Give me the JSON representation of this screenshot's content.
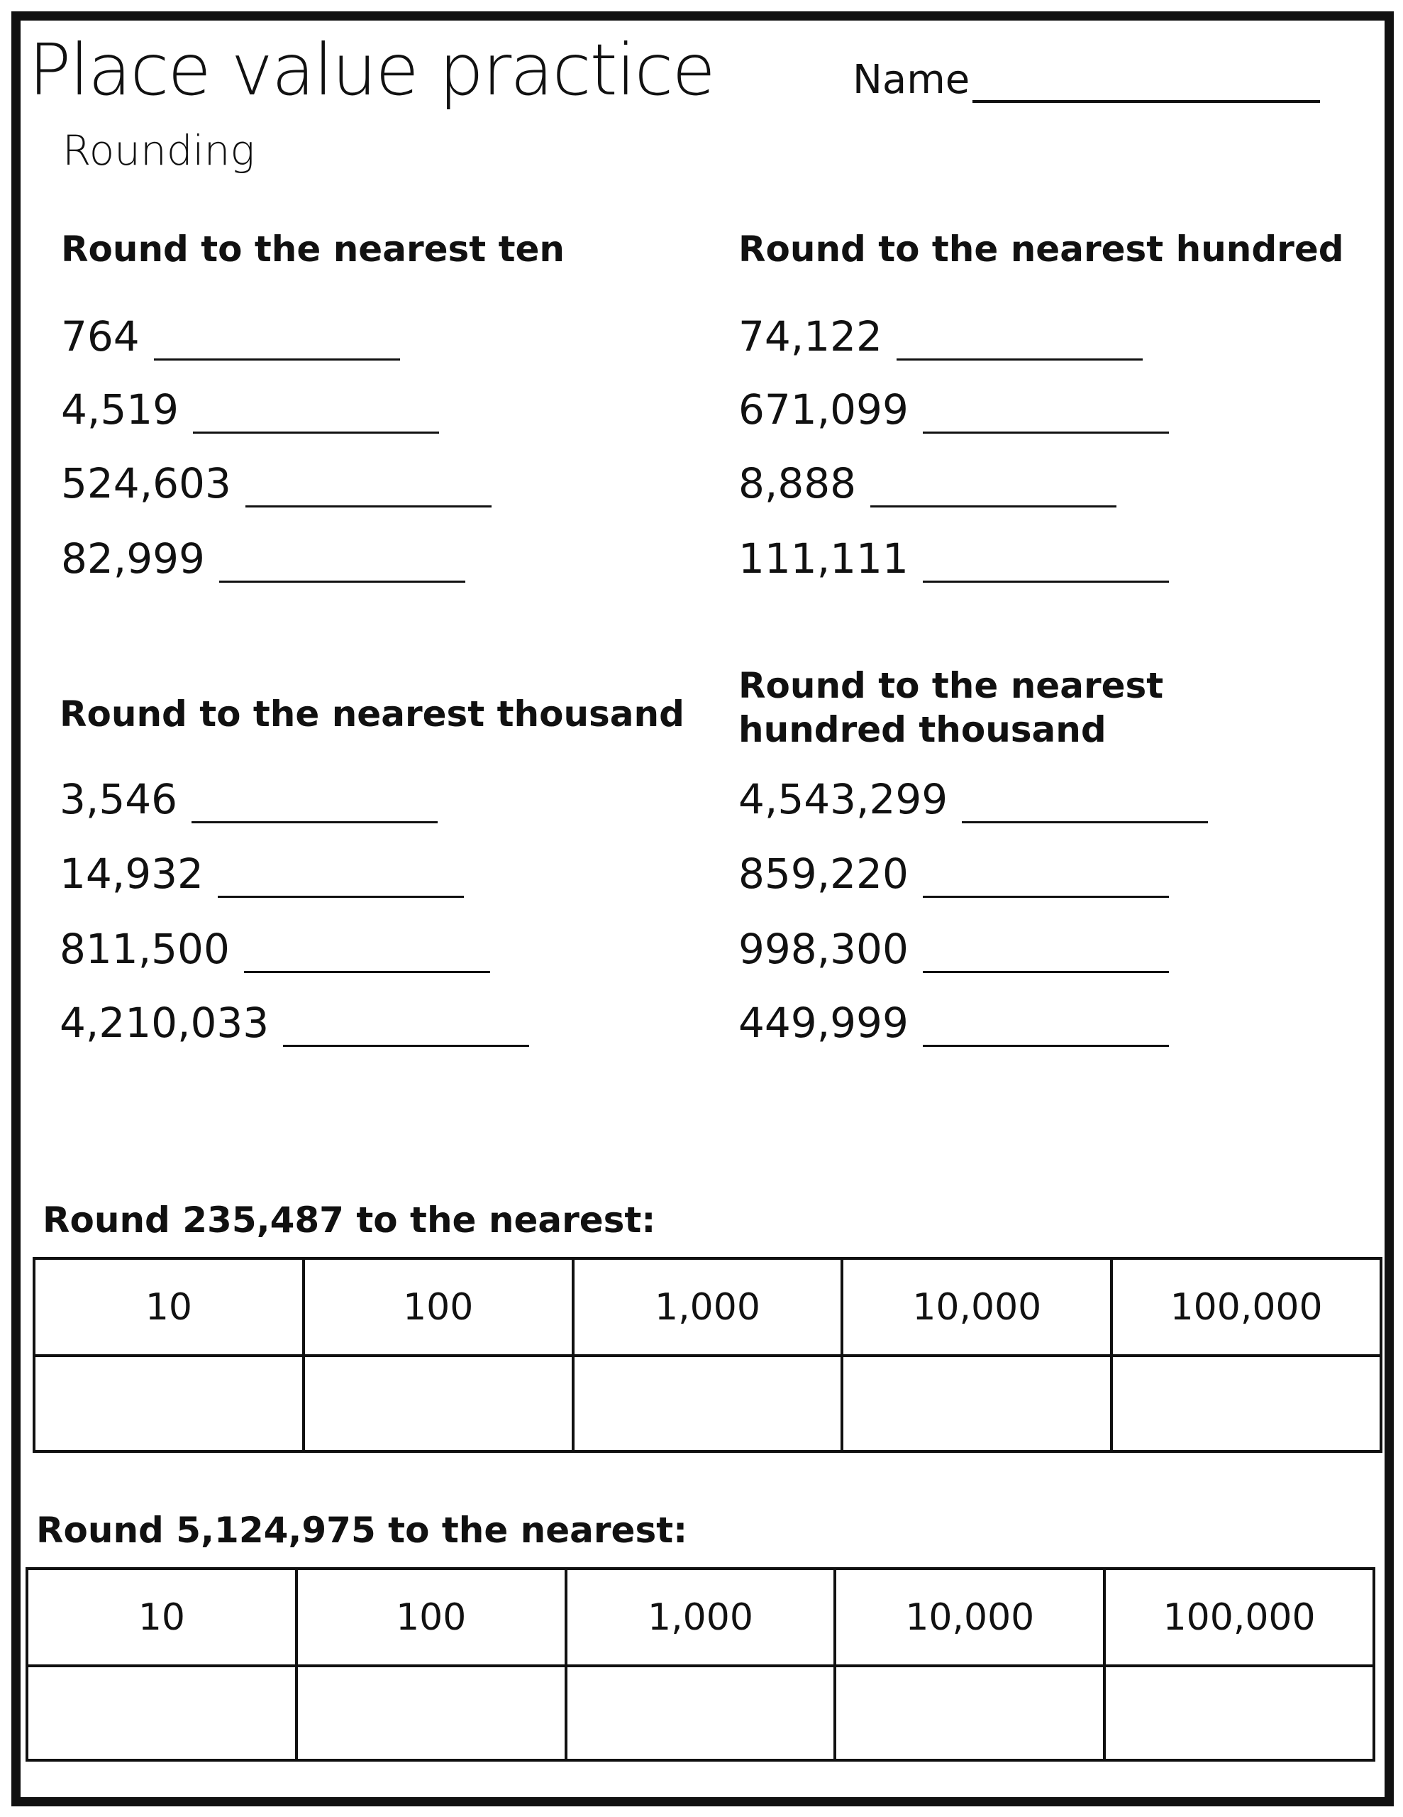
{
  "title": "Place value practice",
  "subtitle": "Rounding",
  "name_label": "Name",
  "sections": [
    {
      "heading": "Round to the nearest ten",
      "items": [
        "764",
        "4,519",
        "524,603",
        "82,999"
      ]
    },
    {
      "heading": "Round to the nearest hundred",
      "items": [
        "74,122",
        "671,099",
        "8,888",
        "111,111"
      ]
    },
    {
      "heading": "Round to the nearest thousand",
      "items": [
        "3,546",
        "14,932",
        "811,500",
        "4,210,033"
      ]
    },
    {
      "heading_line1": "Round to the nearest",
      "heading_line2": "hundred thousand",
      "items": [
        "4,543,299",
        "859,220",
        "998,300",
        "449,999"
      ]
    }
  ],
  "tables": [
    {
      "prompt": "Round 235,487 to the nearest:",
      "columns": [
        "10",
        "100",
        "1,000",
        "10,000",
        "100,000"
      ]
    },
    {
      "prompt": "Round 5,124,975 to the nearest:",
      "columns": [
        "10",
        "100",
        "1,000",
        "10,000",
        "100,000"
      ]
    }
  ]
}
